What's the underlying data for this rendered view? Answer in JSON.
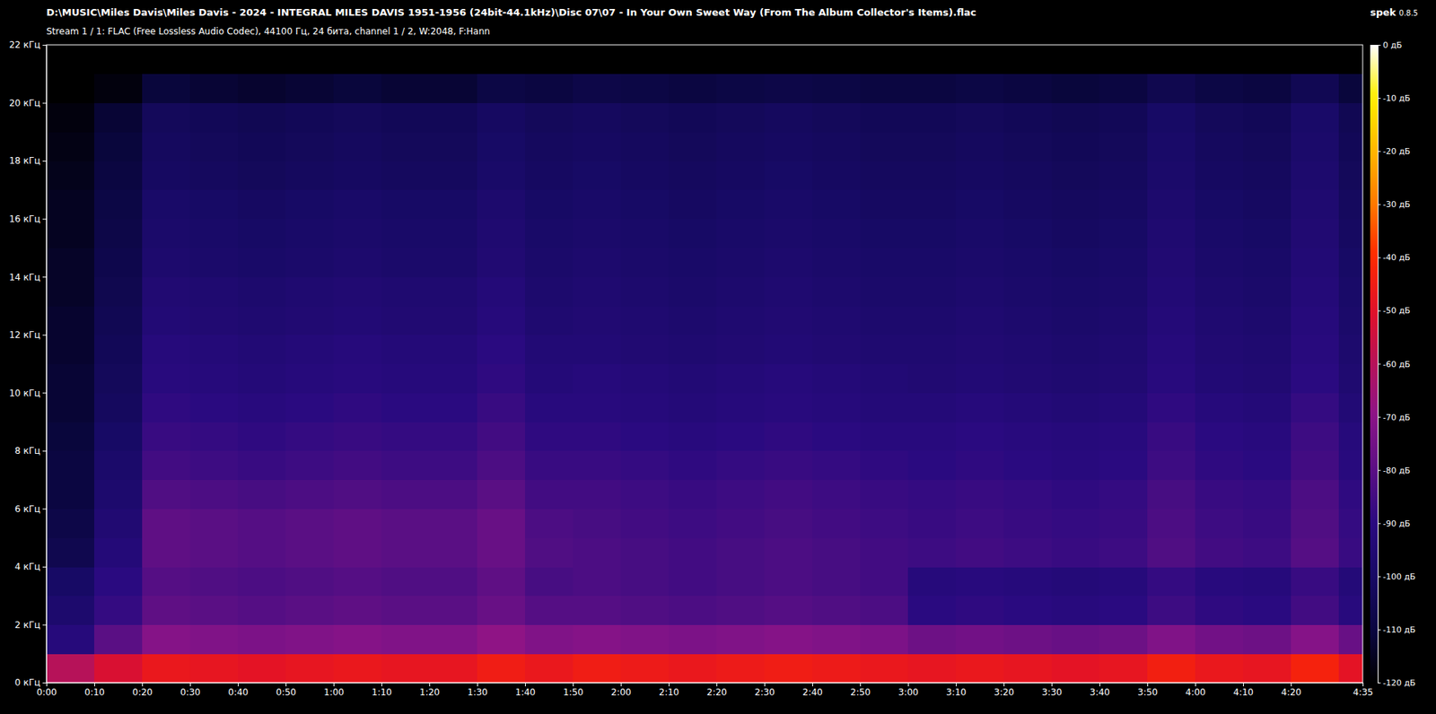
{
  "chart_data": {
    "type": "heatmap",
    "title": "D:\\MUSIC\\Miles Davis\\Miles Davis - 2024 - INTEGRAL MILES DAVIS 1951-1956 (24bit-44.1kHz)\\Disc 07\\07 - In Your Own Sweet Way (From The Album Collector's Items).flac",
    "subtitle": "Stream 1 / 1: FLAC (Free Lossless Audio Codec), 44100 Гц, 24 бита, channel 1 / 2, W:2048, F:Hann",
    "logo": "spek",
    "version": "0.8.5",
    "xlim": [
      0,
      275
    ],
    "ylim": [
      0,
      22
    ],
    "xticks": [
      {
        "value": 0,
        "label": "0:00"
      },
      {
        "value": 10,
        "label": "0:10"
      },
      {
        "value": 20,
        "label": "0:20"
      },
      {
        "value": 30,
        "label": "0:30"
      },
      {
        "value": 40,
        "label": "0:40"
      },
      {
        "value": 50,
        "label": "0:50"
      },
      {
        "value": 60,
        "label": "1:00"
      },
      {
        "value": 70,
        "label": "1:10"
      },
      {
        "value": 80,
        "label": "1:20"
      },
      {
        "value": 90,
        "label": "1:30"
      },
      {
        "value": 100,
        "label": "1:40"
      },
      {
        "value": 110,
        "label": "1:50"
      },
      {
        "value": 120,
        "label": "2:00"
      },
      {
        "value": 130,
        "label": "2:10"
      },
      {
        "value": 140,
        "label": "2:20"
      },
      {
        "value": 150,
        "label": "2:30"
      },
      {
        "value": 160,
        "label": "2:40"
      },
      {
        "value": 170,
        "label": "2:50"
      },
      {
        "value": 180,
        "label": "3:00"
      },
      {
        "value": 190,
        "label": "3:10"
      },
      {
        "value": 200,
        "label": "3:20"
      },
      {
        "value": 210,
        "label": "3:30"
      },
      {
        "value": 220,
        "label": "3:40"
      },
      {
        "value": 230,
        "label": "3:50"
      },
      {
        "value": 240,
        "label": "4:00"
      },
      {
        "value": 250,
        "label": "4:10"
      },
      {
        "value": 260,
        "label": "4:20"
      },
      {
        "value": 275,
        "label": "4:35"
      }
    ],
    "yticks": [
      {
        "value": 0,
        "label": "0 кГц"
      },
      {
        "value": 2,
        "label": "2 кГц"
      },
      {
        "value": 4,
        "label": "4 кГц"
      },
      {
        "value": 6,
        "label": "6 кГц"
      },
      {
        "value": 8,
        "label": "8 кГц"
      },
      {
        "value": 10,
        "label": "10 кГц"
      },
      {
        "value": 12,
        "label": "12 кГц"
      },
      {
        "value": 14,
        "label": "14 кГц"
      },
      {
        "value": 16,
        "label": "16 кГц"
      },
      {
        "value": 18,
        "label": "18 кГц"
      },
      {
        "value": 20,
        "label": "20 кГц"
      },
      {
        "value": 22,
        "label": "22 кГц"
      }
    ],
    "x_bins": [
      0,
      10,
      20,
      30,
      40,
      50,
      60,
      70,
      80,
      90,
      100,
      110,
      120,
      130,
      140,
      150,
      160,
      170,
      180,
      190,
      200,
      210,
      220,
      230,
      240,
      250,
      260,
      270,
      275
    ],
    "y_bins": [
      0,
      1,
      2,
      3,
      4,
      5,
      6,
      7,
      8,
      9,
      10,
      11,
      12,
      13,
      14,
      15,
      16,
      17,
      18,
      19,
      20,
      21,
      22
    ],
    "values": [
      [
        -60,
        -52,
        -47,
        -48,
        -49,
        -48,
        -47,
        -48,
        -48,
        -45,
        -47,
        -45,
        -46,
        -47,
        -46,
        -45,
        -46,
        -47,
        -48,
        -47,
        -48,
        -49,
        -48,
        -44,
        -47,
        -48,
        -43,
        -49
      ],
      [
        -92,
        -80,
        -71,
        -72,
        -73,
        -72,
        -71,
        -72,
        -72,
        -69,
        -72,
        -71,
        -72,
        -73,
        -72,
        -71,
        -72,
        -73,
        -76,
        -75,
        -76,
        -77,
        -76,
        -72,
        -75,
        -76,
        -71,
        -77
      ],
      [
        -97,
        -88,
        -79,
        -80,
        -81,
        -80,
        -79,
        -80,
        -80,
        -77,
        -81,
        -81,
        -82,
        -83,
        -82,
        -81,
        -82,
        -83,
        -90,
        -89,
        -90,
        -91,
        -90,
        -86,
        -89,
        -90,
        -85,
        -91
      ],
      [
        -100,
        -90,
        -81,
        -82,
        -83,
        -82,
        -81,
        -82,
        -82,
        -79,
        -84,
        -83,
        -84,
        -85,
        -84,
        -83,
        -84,
        -85,
        -92,
        -91,
        -92,
        -93,
        -92,
        -88,
        -91,
        -92,
        -87,
        -93
      ],
      [
        -106,
        -93,
        -79,
        -80,
        -81,
        -80,
        -79,
        -80,
        -80,
        -77,
        -82,
        -83,
        -84,
        -85,
        -84,
        -83,
        -84,
        -85,
        -86,
        -85,
        -86,
        -87,
        -86,
        -82,
        -85,
        -86,
        -81,
        -87
      ],
      [
        -108,
        -95,
        -79,
        -80,
        -81,
        -80,
        -79,
        -80,
        -80,
        -77,
        -83,
        -84,
        -85,
        -86,
        -85,
        -84,
        -85,
        -86,
        -87,
        -86,
        -87,
        -88,
        -87,
        -83,
        -86,
        -87,
        -82,
        -88
      ],
      [
        -110,
        -97,
        -82,
        -83,
        -84,
        -83,
        -82,
        -83,
        -83,
        -80,
        -85,
        -85,
        -86,
        -87,
        -86,
        -85,
        -86,
        -87,
        -88,
        -87,
        -88,
        -89,
        -88,
        -84,
        -87,
        -88,
        -83,
        -89
      ],
      [
        -110,
        -98,
        -85,
        -86,
        -87,
        -86,
        -85,
        -86,
        -86,
        -83,
        -87,
        -87,
        -88,
        -89,
        -88,
        -87,
        -88,
        -89,
        -90,
        -89,
        -90,
        -91,
        -90,
        -86,
        -89,
        -90,
        -85,
        -91
      ],
      [
        -111,
        -100,
        -87,
        -88,
        -89,
        -88,
        -87,
        -88,
        -88,
        -85,
        -89,
        -89,
        -90,
        -91,
        -90,
        -89,
        -90,
        -91,
        -91,
        -90,
        -91,
        -92,
        -91,
        -87,
        -90,
        -91,
        -86,
        -92
      ],
      [
        -112,
        -102,
        -89,
        -90,
        -91,
        -90,
        -89,
        -90,
        -90,
        -87,
        -91,
        -91,
        -92,
        -93,
        -92,
        -91,
        -92,
        -93,
        -93,
        -92,
        -93,
        -94,
        -93,
        -89,
        -92,
        -93,
        -88,
        -94
      ],
      [
        -112,
        -103,
        -91,
        -92,
        -93,
        -92,
        -91,
        -92,
        -92,
        -89,
        -93,
        -92,
        -93,
        -94,
        -93,
        -92,
        -93,
        -94,
        -95,
        -94,
        -95,
        -96,
        -95,
        -91,
        -94,
        -95,
        -90,
        -96
      ],
      [
        -113,
        -104,
        -92,
        -93,
        -94,
        -93,
        -92,
        -93,
        -93,
        -90,
        -94,
        -94,
        -95,
        -96,
        -95,
        -94,
        -95,
        -96,
        -96,
        -95,
        -96,
        -97,
        -96,
        -92,
        -95,
        -96,
        -91,
        -97
      ],
      [
        -113,
        -105,
        -94,
        -95,
        -96,
        -95,
        -94,
        -95,
        -95,
        -92,
        -96,
        -95,
        -96,
        -97,
        -96,
        -95,
        -96,
        -97,
        -97,
        -96,
        -97,
        -98,
        -97,
        -93,
        -96,
        -97,
        -92,
        -98
      ],
      [
        -114,
        -106,
        -95,
        -96,
        -97,
        -96,
        -95,
        -96,
        -96,
        -93,
        -97,
        -96,
        -97,
        -98,
        -97,
        -96,
        -97,
        -98,
        -98,
        -97,
        -98,
        -99,
        -98,
        -94,
        -97,
        -98,
        -93,
        -99
      ],
      [
        -114,
        -107,
        -97,
        -98,
        -99,
        -98,
        -97,
        -98,
        -98,
        -95,
        -98,
        -97,
        -98,
        -99,
        -98,
        -97,
        -98,
        -99,
        -99,
        -98,
        -99,
        -100,
        -99,
        -95,
        -98,
        -99,
        -94,
        -100
      ],
      [
        -115,
        -108,
        -98,
        -99,
        -100,
        -99,
        -98,
        -99,
        -99,
        -96,
        -99,
        -98,
        -99,
        -100,
        -99,
        -98,
        -99,
        -100,
        -100,
        -99,
        -100,
        -101,
        -100,
        -96,
        -99,
        -100,
        -95,
        -101
      ],
      [
        -115,
        -109,
        -99,
        -100,
        -101,
        -100,
        -99,
        -100,
        -100,
        -97,
        -100,
        -99,
        -100,
        -101,
        -100,
        -99,
        -100,
        -101,
        -101,
        -100,
        -101,
        -102,
        -101,
        -97,
        -100,
        -101,
        -96,
        -102
      ],
      [
        -116,
        -110,
        -101,
        -102,
        -103,
        -102,
        -101,
        -102,
        -102,
        -99,
        -101,
        -100,
        -101,
        -102,
        -101,
        -100,
        -101,
        -102,
        -102,
        -101,
        -102,
        -103,
        -102,
        -98,
        -101,
        -102,
        -97,
        -103
      ],
      [
        -117,
        -111,
        -102,
        -103,
        -104,
        -103,
        -102,
        -103,
        -103,
        -100,
        -102,
        -101,
        -102,
        -103,
        -102,
        -101,
        -102,
        -103,
        -103,
        -102,
        -103,
        -104,
        -103,
        -99,
        -102,
        -103,
        -98,
        -104
      ],
      [
        -118,
        -112,
        -103,
        -104,
        -105,
        -104,
        -103,
        -104,
        -104,
        -101,
        -103,
        -102,
        -103,
        -104,
        -103,
        -102,
        -103,
        -104,
        -104,
        -103,
        -104,
        -105,
        -104,
        -100,
        -103,
        -104,
        -99,
        -105
      ],
      [
        -120,
        -118,
        -111,
        -112,
        -113,
        -112,
        -111,
        -112,
        -112,
        -109,
        -110,
        -108,
        -109,
        -110,
        -109,
        -108,
        -109,
        -110,
        -110,
        -109,
        -110,
        -111,
        -110,
        -106,
        -109,
        -110,
        -105,
        -111
      ],
      [
        -120,
        -120,
        -120,
        -120,
        -120,
        -120,
        -120,
        -120,
        -120,
        -120,
        -120,
        -120,
        -120,
        -120,
        -120,
        -120,
        -120,
        -120,
        -120,
        -120,
        -120,
        -120,
        -120,
        -120,
        -120,
        -120,
        -120,
        -120
      ]
    ],
    "colorbar": {
      "range": [
        -120,
        0
      ],
      "ticks": [
        {
          "value": 0,
          "label": "0 дБ"
        },
        {
          "value": -10,
          "label": "-10 дБ"
        },
        {
          "value": -20,
          "label": "-20 дБ"
        },
        {
          "value": -30,
          "label": "-30 дБ"
        },
        {
          "value": -40,
          "label": "-40 дБ"
        },
        {
          "value": -50,
          "label": "-50 дБ"
        },
        {
          "value": -60,
          "label": "-60 дБ"
        },
        {
          "value": -70,
          "label": "-70 дБ"
        },
        {
          "value": -80,
          "label": "-80 дБ"
        },
        {
          "value": -90,
          "label": "-90 дБ"
        },
        {
          "value": -100,
          "label": "-100 дБ"
        },
        {
          "value": -110,
          "label": "-110 дБ"
        },
        {
          "value": -120,
          "label": "-120 дБ"
        }
      ]
    }
  }
}
